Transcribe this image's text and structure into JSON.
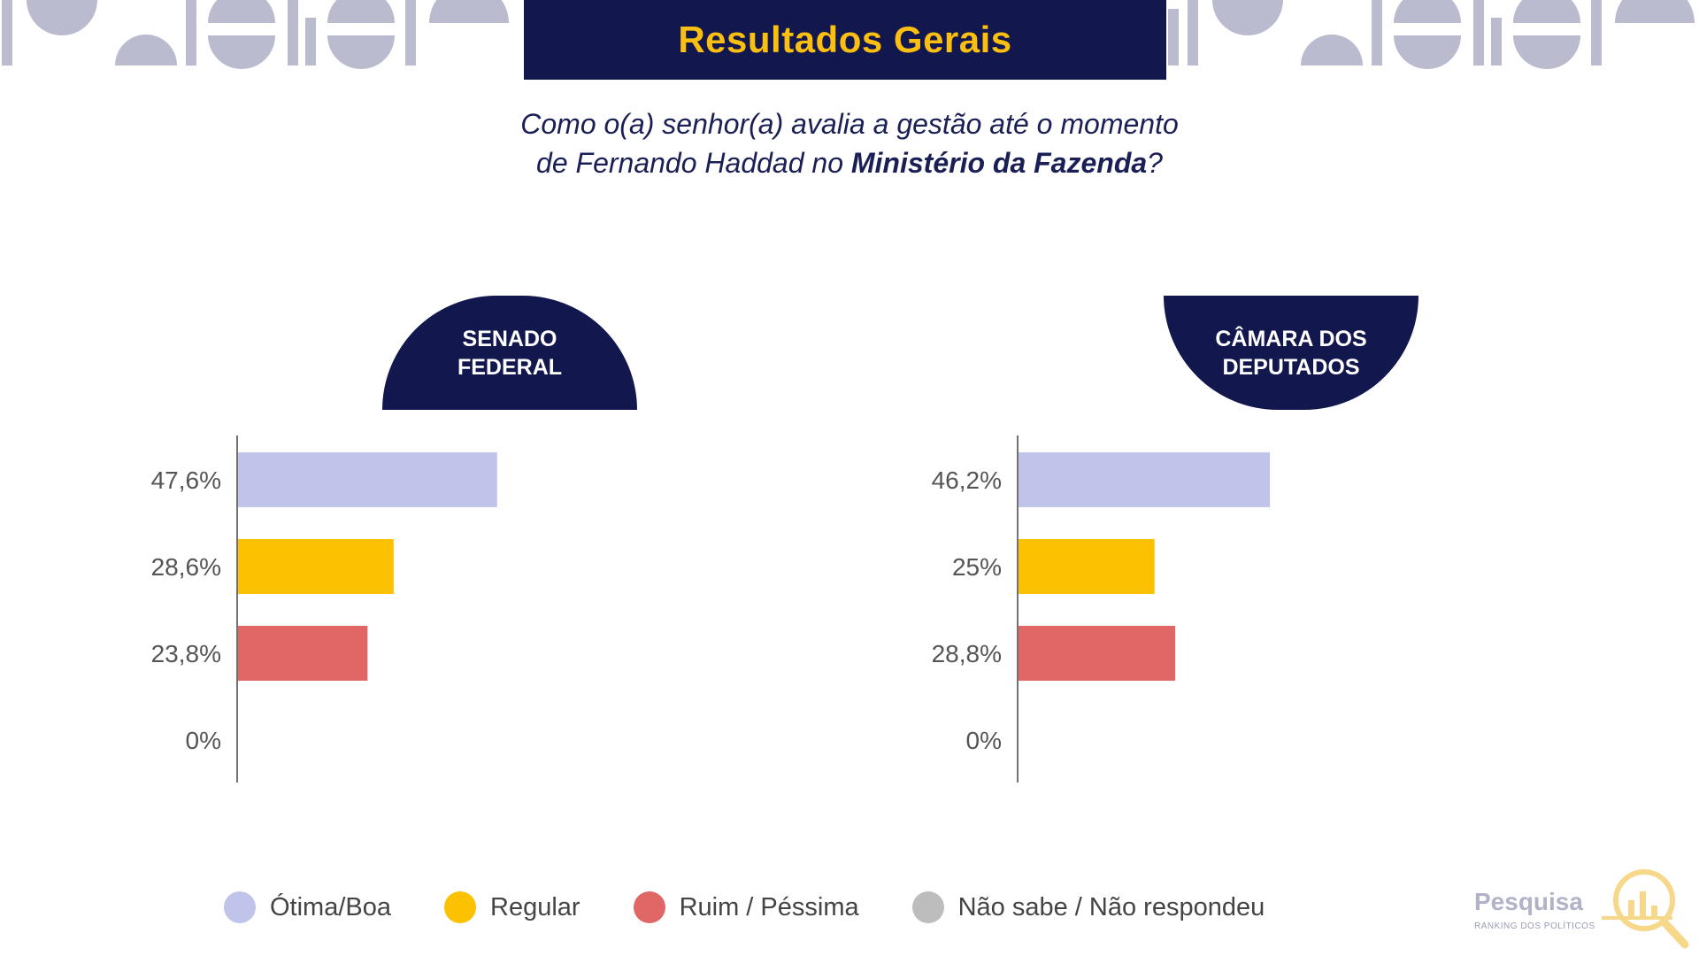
{
  "header": {
    "title": "Resultados Gerais"
  },
  "question": {
    "line1": "Como o(a) senhor(a) avalia a gestão até o momento",
    "line2_part1": "de Fernando Haddad no ",
    "line2_bold": "Ministério da Fazenda",
    "line2_part2": "?"
  },
  "colors": {
    "navy": "#12174d",
    "gold": "#fbbf12",
    "decoration": "#babbcf"
  },
  "legend": {
    "items": [
      {
        "label": "Ótima/Boa",
        "color": "#c0c3ea"
      },
      {
        "label": "Regular",
        "color": "#fcc100"
      },
      {
        "label": "Ruim / Péssima",
        "color": "#e06766"
      },
      {
        "label": "Não sabe / Não respondeu",
        "color": "#bdbdbd"
      }
    ]
  },
  "logo": {
    "word": "Pesquisa",
    "sub": "RANKING DOS POLÍTICOS"
  },
  "chart_data": [
    {
      "type": "bar",
      "orientation": "horizontal",
      "title": "SENADO FEDERAL",
      "title_lines": [
        "SENADO",
        "FEDERAL"
      ],
      "categories": [
        "Ótima/Boa",
        "Regular",
        "Ruim / Péssima",
        "Não sabe / Não respondeu"
      ],
      "values": [
        47.6,
        28.6,
        23.8,
        0
      ],
      "value_labels": [
        "47,6%",
        "28,6%",
        "23,8%",
        "0%"
      ],
      "colors": [
        "#c0c3ea",
        "#fcc100",
        "#e06766",
        "#bdbdbd"
      ],
      "unit": "%",
      "xlim": [
        0,
        100
      ],
      "grid": false
    },
    {
      "type": "bar",
      "orientation": "horizontal",
      "title": "CÂMARA DOS DEPUTADOS",
      "title_lines": [
        "CÂMARA DOS",
        "DEPUTADOS"
      ],
      "categories": [
        "Ótima/Boa",
        "Regular",
        "Ruim / Péssima",
        "Não sabe / Não respondeu"
      ],
      "values": [
        46.2,
        25,
        28.8,
        0
      ],
      "value_labels": [
        "46,2%",
        "25%",
        "28,8%",
        "0%"
      ],
      "colors": [
        "#c0c3ea",
        "#fcc100",
        "#e06766",
        "#bdbdbd"
      ],
      "unit": "%",
      "xlim": [
        0,
        100
      ],
      "grid": false
    }
  ]
}
